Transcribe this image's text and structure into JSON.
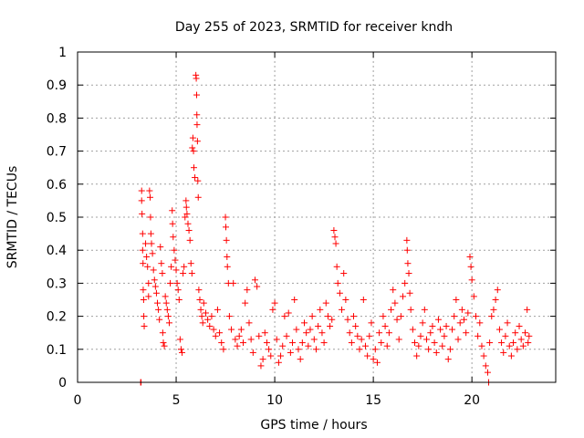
{
  "chart_data": {
    "type": "scatter",
    "title": "Day 255 of 2023, SRMTID for receiver kndh",
    "xlabel": "GPS time / hours",
    "ylabel": "SRMTID / TECUs",
    "xlim": [
      0,
      24.25
    ],
    "ylim": [
      0,
      1
    ],
    "xticks": [
      0,
      5,
      10,
      15,
      20
    ],
    "xtick_labels": [
      "0",
      "5",
      "10",
      "15",
      "20"
    ],
    "yticks": [
      0,
      0.1,
      0.2,
      0.3,
      0.4,
      0.5,
      0.6,
      0.7,
      0.8,
      0.9,
      1
    ],
    "ytick_labels": [
      "0",
      "0.1",
      "0.2",
      "0.3",
      "0.4",
      "0.5",
      "0.6",
      "0.7",
      "0.8",
      "0.9",
      "1"
    ],
    "grid": true,
    "marker": "+",
    "color": "#ff0000",
    "series": [
      {
        "name": "SRMTID",
        "points": [
          [
            3.2,
            0.0
          ],
          [
            3.22,
            0.0
          ],
          [
            3.25,
            0.58
          ],
          [
            3.25,
            0.55
          ],
          [
            3.27,
            0.51
          ],
          [
            3.3,
            0.45
          ],
          [
            3.3,
            0.4
          ],
          [
            3.32,
            0.36
          ],
          [
            3.33,
            0.28
          ],
          [
            3.35,
            0.25
          ],
          [
            3.36,
            0.2
          ],
          [
            3.38,
            0.17
          ],
          [
            3.45,
            0.42
          ],
          [
            3.5,
            0.38
          ],
          [
            3.55,
            0.35
          ],
          [
            3.6,
            0.3
          ],
          [
            3.6,
            0.26
          ],
          [
            3.65,
            0.58
          ],
          [
            3.68,
            0.56
          ],
          [
            3.7,
            0.5
          ],
          [
            3.72,
            0.45
          ],
          [
            3.75,
            0.42
          ],
          [
            3.8,
            0.39
          ],
          [
            3.85,
            0.34
          ],
          [
            3.9,
            0.31
          ],
          [
            3.95,
            0.29
          ],
          [
            4.0,
            0.27
          ],
          [
            4.05,
            0.24
          ],
          [
            4.1,
            0.22
          ],
          [
            4.15,
            0.19
          ],
          [
            4.2,
            0.41
          ],
          [
            4.25,
            0.36
          ],
          [
            4.3,
            0.33
          ],
          [
            4.32,
            0.15
          ],
          [
            4.35,
            0.12
          ],
          [
            4.4,
            0.11
          ],
          [
            4.45,
            0.26
          ],
          [
            4.5,
            0.24
          ],
          [
            4.55,
            0.22
          ],
          [
            4.6,
            0.2
          ],
          [
            4.65,
            0.18
          ],
          [
            4.7,
            0.3
          ],
          [
            4.75,
            0.35
          ],
          [
            4.8,
            0.52
          ],
          [
            4.82,
            0.48
          ],
          [
            4.85,
            0.44
          ],
          [
            4.9,
            0.4
          ],
          [
            4.95,
            0.37
          ],
          [
            5.0,
            0.34
          ],
          [
            5.05,
            0.3
          ],
          [
            5.1,
            0.28
          ],
          [
            5.15,
            0.25
          ],
          [
            5.2,
            0.13
          ],
          [
            5.25,
            0.1
          ],
          [
            5.3,
            0.09
          ],
          [
            5.35,
            0.33
          ],
          [
            5.4,
            0.35
          ],
          [
            5.45,
            0.5
          ],
          [
            5.5,
            0.55
          ],
          [
            5.52,
            0.53
          ],
          [
            5.55,
            0.51
          ],
          [
            5.6,
            0.48
          ],
          [
            5.65,
            0.46
          ],
          [
            5.7,
            0.43
          ],
          [
            5.75,
            0.36
          ],
          [
            5.8,
            0.33
          ],
          [
            5.82,
            0.71
          ],
          [
            5.85,
            0.74
          ],
          [
            5.88,
            0.7
          ],
          [
            5.9,
            0.65
          ],
          [
            5.95,
            0.62
          ],
          [
            6.0,
            0.93
          ],
          [
            6.02,
            0.92
          ],
          [
            6.04,
            0.87
          ],
          [
            6.05,
            0.81
          ],
          [
            6.06,
            0.78
          ],
          [
            6.08,
            0.73
          ],
          [
            6.1,
            0.61
          ],
          [
            6.12,
            0.56
          ],
          [
            6.15,
            0.28
          ],
          [
            6.2,
            0.25
          ],
          [
            6.25,
            0.22
          ],
          [
            6.3,
            0.2
          ],
          [
            6.35,
            0.18
          ],
          [
            6.4,
            0.24
          ],
          [
            6.5,
            0.21
          ],
          [
            6.6,
            0.19
          ],
          [
            6.7,
            0.17
          ],
          [
            6.8,
            0.2
          ],
          [
            6.9,
            0.16
          ],
          [
            7.0,
            0.14
          ],
          [
            7.1,
            0.22
          ],
          [
            7.2,
            0.15
          ],
          [
            7.3,
            0.12
          ],
          [
            7.4,
            0.1
          ],
          [
            7.5,
            0.5
          ],
          [
            7.52,
            0.47
          ],
          [
            7.55,
            0.43
          ],
          [
            7.58,
            0.38
          ],
          [
            7.6,
            0.35
          ],
          [
            7.65,
            0.3
          ],
          [
            7.7,
            0.2
          ],
          [
            7.8,
            0.16
          ],
          [
            7.9,
            0.3
          ],
          [
            8.0,
            0.13
          ],
          [
            8.1,
            0.11
          ],
          [
            8.2,
            0.14
          ],
          [
            8.3,
            0.16
          ],
          [
            8.4,
            0.12
          ],
          [
            8.5,
            0.24
          ],
          [
            8.6,
            0.28
          ],
          [
            8.7,
            0.18
          ],
          [
            8.8,
            0.13
          ],
          [
            8.9,
            0.09
          ],
          [
            9.0,
            0.31
          ],
          [
            9.1,
            0.29
          ],
          [
            9.2,
            0.14
          ],
          [
            9.3,
            0.05
          ],
          [
            9.4,
            0.07
          ],
          [
            9.5,
            0.15
          ],
          [
            9.6,
            0.12
          ],
          [
            9.7,
            0.1
          ],
          [
            9.8,
            0.08
          ],
          [
            9.9,
            0.22
          ],
          [
            10.0,
            0.24
          ],
          [
            10.1,
            0.13
          ],
          [
            10.2,
            0.06
          ],
          [
            10.3,
            0.08
          ],
          [
            10.4,
            0.11
          ],
          [
            10.5,
            0.2
          ],
          [
            10.6,
            0.14
          ],
          [
            10.7,
            0.21
          ],
          [
            10.8,
            0.09
          ],
          [
            10.9,
            0.12
          ],
          [
            11.0,
            0.25
          ],
          [
            11.1,
            0.16
          ],
          [
            11.2,
            0.1
          ],
          [
            11.3,
            0.07
          ],
          [
            11.4,
            0.12
          ],
          [
            11.5,
            0.18
          ],
          [
            11.6,
            0.15
          ],
          [
            11.7,
            0.11
          ],
          [
            11.8,
            0.16
          ],
          [
            11.9,
            0.2
          ],
          [
            12.0,
            0.13
          ],
          [
            12.1,
            0.1
          ],
          [
            12.2,
            0.17
          ],
          [
            12.3,
            0.22
          ],
          [
            12.4,
            0.15
          ],
          [
            12.5,
            0.12
          ],
          [
            12.6,
            0.24
          ],
          [
            12.7,
            0.2
          ],
          [
            12.8,
            0.17
          ],
          [
            12.9,
            0.19
          ],
          [
            13.0,
            0.46
          ],
          [
            13.05,
            0.44
          ],
          [
            13.1,
            0.42
          ],
          [
            13.15,
            0.35
          ],
          [
            13.2,
            0.3
          ],
          [
            13.3,
            0.27
          ],
          [
            13.4,
            0.22
          ],
          [
            13.5,
            0.33
          ],
          [
            13.6,
            0.25
          ],
          [
            13.7,
            0.19
          ],
          [
            13.8,
            0.15
          ],
          [
            13.9,
            0.12
          ],
          [
            14.0,
            0.2
          ],
          [
            14.1,
            0.17
          ],
          [
            14.2,
            0.14
          ],
          [
            14.3,
            0.1
          ],
          [
            14.4,
            0.13
          ],
          [
            14.5,
            0.25
          ],
          [
            14.6,
            0.11
          ],
          [
            14.7,
            0.08
          ],
          [
            14.8,
            0.14
          ],
          [
            14.9,
            0.18
          ],
          [
            15.0,
            0.07
          ],
          [
            15.1,
            0.1
          ],
          [
            15.2,
            0.06
          ],
          [
            15.3,
            0.15
          ],
          [
            15.4,
            0.12
          ],
          [
            15.5,
            0.2
          ],
          [
            15.6,
            0.17
          ],
          [
            15.7,
            0.11
          ],
          [
            15.8,
            0.15
          ],
          [
            15.9,
            0.22
          ],
          [
            16.0,
            0.28
          ],
          [
            16.1,
            0.24
          ],
          [
            16.2,
            0.19
          ],
          [
            16.3,
            0.13
          ],
          [
            16.4,
            0.2
          ],
          [
            16.5,
            0.26
          ],
          [
            16.6,
            0.3
          ],
          [
            16.7,
            0.43
          ],
          [
            16.72,
            0.4
          ],
          [
            16.75,
            0.36
          ],
          [
            16.8,
            0.33
          ],
          [
            16.85,
            0.27
          ],
          [
            16.9,
            0.22
          ],
          [
            17.0,
            0.16
          ],
          [
            17.1,
            0.12
          ],
          [
            17.2,
            0.08
          ],
          [
            17.3,
            0.11
          ],
          [
            17.4,
            0.14
          ],
          [
            17.5,
            0.18
          ],
          [
            17.6,
            0.22
          ],
          [
            17.7,
            0.13
          ],
          [
            17.8,
            0.1
          ],
          [
            17.9,
            0.15
          ],
          [
            18.0,
            0.17
          ],
          [
            18.1,
            0.12
          ],
          [
            18.2,
            0.09
          ],
          [
            18.3,
            0.19
          ],
          [
            18.4,
            0.16
          ],
          [
            18.5,
            0.11
          ],
          [
            18.6,
            0.14
          ],
          [
            18.7,
            0.17
          ],
          [
            18.8,
            0.07
          ],
          [
            18.9,
            0.1
          ],
          [
            19.0,
            0.16
          ],
          [
            19.1,
            0.2
          ],
          [
            19.2,
            0.25
          ],
          [
            19.3,
            0.13
          ],
          [
            19.4,
            0.18
          ],
          [
            19.5,
            0.22
          ],
          [
            19.6,
            0.19
          ],
          [
            19.7,
            0.15
          ],
          [
            19.8,
            0.21
          ],
          [
            19.9,
            0.38
          ],
          [
            19.95,
            0.35
          ],
          [
            20.0,
            0.31
          ],
          [
            20.1,
            0.26
          ],
          [
            20.2,
            0.2
          ],
          [
            20.3,
            0.14
          ],
          [
            20.4,
            0.18
          ],
          [
            20.5,
            0.11
          ],
          [
            20.6,
            0.08
          ],
          [
            20.7,
            0.05
          ],
          [
            20.8,
            0.03
          ],
          [
            20.85,
            0.0
          ],
          [
            20.9,
            0.12
          ],
          [
            21.0,
            0.2
          ],
          [
            21.1,
            0.22
          ],
          [
            21.2,
            0.25
          ],
          [
            21.3,
            0.28
          ],
          [
            21.4,
            0.16
          ],
          [
            21.5,
            0.12
          ],
          [
            21.6,
            0.09
          ],
          [
            21.7,
            0.14
          ],
          [
            21.8,
            0.18
          ],
          [
            21.9,
            0.11
          ],
          [
            22.0,
            0.08
          ],
          [
            22.1,
            0.12
          ],
          [
            22.2,
            0.15
          ],
          [
            22.3,
            0.1
          ],
          [
            22.4,
            0.17
          ],
          [
            22.5,
            0.13
          ],
          [
            22.6,
            0.11
          ],
          [
            22.7,
            0.15
          ],
          [
            22.8,
            0.22
          ],
          [
            22.85,
            0.12
          ],
          [
            22.9,
            0.14
          ]
        ]
      }
    ]
  }
}
